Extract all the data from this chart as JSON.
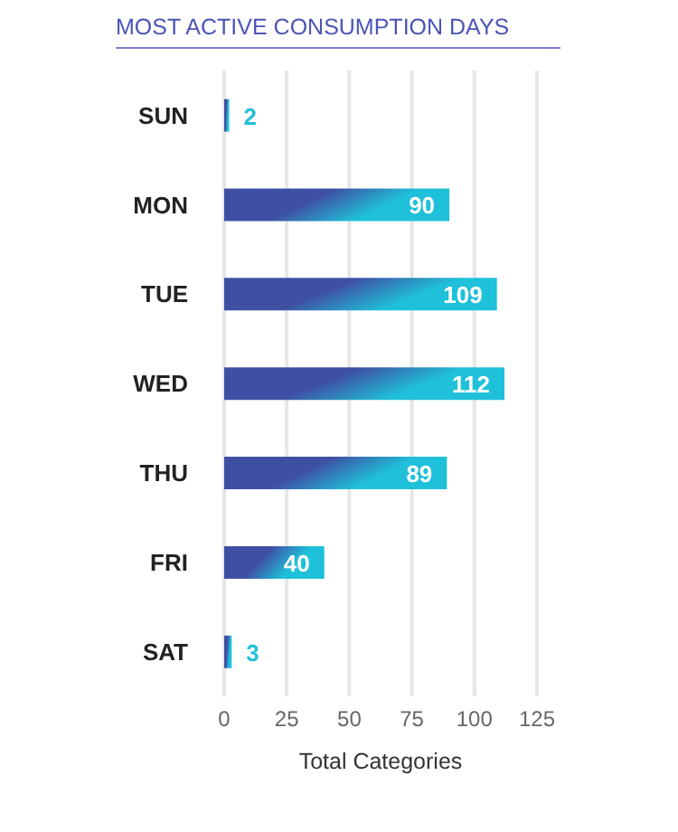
{
  "chart_data": {
    "type": "bar",
    "orientation": "horizontal",
    "title": "MOST ACTIVE CONSUMPTION DAYS",
    "xlabel": "Total Categories",
    "categories": [
      "SUN",
      "MON",
      "TUE",
      "WED",
      "THU",
      "FRI",
      "SAT"
    ],
    "values": [
      2,
      90,
      109,
      112,
      89,
      40,
      3
    ],
    "color": "#3f4fa3",
    "xlim": [
      0,
      125
    ],
    "xticks": [
      0,
      25,
      50,
      75,
      100,
      125
    ],
    "grid": "x",
    "data_labels": true
  }
}
